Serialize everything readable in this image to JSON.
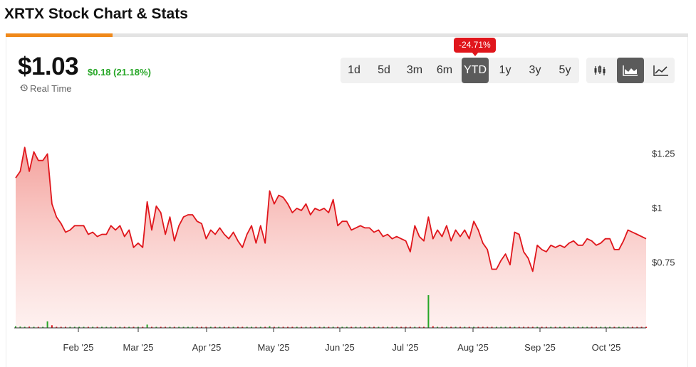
{
  "header": {
    "title": "XRTX Stock Chart & Stats"
  },
  "quote": {
    "price": "$1.03",
    "change": "$0.18 (21.18%)",
    "realtime_label": "Real Time"
  },
  "ranges": {
    "items": [
      "1d",
      "5d",
      "3m",
      "6m",
      "YTD",
      "1y",
      "3y",
      "5y"
    ],
    "selected": "YTD",
    "selected_change": "-24.71%"
  },
  "chart_types": [
    {
      "icon": "candlestick-icon",
      "selected": false
    },
    {
      "icon": "area-chart-icon",
      "selected": true
    },
    {
      "icon": "line-chart-icon",
      "selected": false
    }
  ],
  "colors": {
    "accent": "#f0891a",
    "line": "#e0161c",
    "up": "#26a626",
    "down": "#e0161c"
  },
  "chart_data": {
    "type": "area",
    "x_tick_labels": [
      "Feb '25",
      "Mar '25",
      "Apr '25",
      "May '25",
      "Jun '25",
      "Jul '25",
      "Aug '25",
      "Sep '25",
      "Oct '25"
    ],
    "y_tick_labels": [
      "$1.25",
      "$1",
      "$0.75"
    ],
    "y_ticks": [
      1.25,
      1.0,
      0.75
    ],
    "ylim": [
      0.45,
      1.5
    ],
    "series": [
      {
        "values": [
          1.14,
          1.17,
          1.28,
          1.17,
          1.26,
          1.22,
          1.22,
          1.25,
          1.02,
          0.96,
          0.93,
          0.89,
          0.9,
          0.92,
          0.92,
          0.92,
          0.88,
          0.89,
          0.87,
          0.88,
          0.88,
          0.92,
          0.9,
          0.92,
          0.87,
          0.9,
          0.82,
          0.84,
          0.82,
          1.03,
          0.9,
          1.01,
          0.98,
          0.88,
          0.96,
          0.85,
          0.92,
          0.96,
          0.97,
          0.97,
          0.94,
          0.93,
          0.86,
          0.9,
          0.88,
          0.91,
          0.88,
          0.86,
          0.89,
          0.85,
          0.82,
          0.88,
          0.92,
          0.84,
          0.92,
          0.84,
          1.08,
          1.02,
          1.06,
          1.05,
          1.02,
          0.98,
          1.0,
          0.99,
          1.02,
          0.97,
          1.0,
          0.99,
          1.0,
          0.98,
          1.04,
          0.92,
          0.94,
          0.94,
          0.9,
          0.91,
          0.92,
          0.91,
          0.91,
          0.89,
          0.9,
          0.87,
          0.88,
          0.86,
          0.87,
          0.86,
          0.85,
          0.8,
          0.92,
          0.87,
          0.85,
          0.96,
          0.86,
          0.9,
          0.87,
          0.92,
          0.85,
          0.9,
          0.87,
          0.9,
          0.86,
          0.94,
          0.9,
          0.84,
          0.81,
          0.72,
          0.72,
          0.76,
          0.79,
          0.74,
          0.89,
          0.88,
          0.8,
          0.77,
          0.71,
          0.83,
          0.81,
          0.8,
          0.83,
          0.82,
          0.83,
          0.82,
          0.84,
          0.85,
          0.83,
          0.83,
          0.86,
          0.85,
          0.83,
          0.84,
          0.86,
          0.86,
          0.81,
          0.81,
          0.85,
          0.9,
          0.89,
          0.88,
          0.87,
          0.86
        ]
      }
    ],
    "volume_values": [
      0.05,
      0.04,
      0.03,
      0.04,
      0.03,
      0.03,
      0.03,
      0.2,
      0.08,
      0.02,
      0.02,
      0.02,
      0.01,
      0.01,
      0.01,
      0.01,
      0.01,
      0.01,
      0.01,
      0.01,
      0.01,
      0.02,
      0.01,
      0.02,
      0.01,
      0.01,
      0.01,
      0.01,
      0.01,
      0.1,
      0.02,
      0.01,
      0.01,
      0.01,
      0.01,
      0.01,
      0.01,
      0.01,
      0.01,
      0.01,
      0.01,
      0.01,
      0.01,
      0.01,
      0.01,
      0.01,
      0.01,
      0.01,
      0.01,
      0.01,
      0.01,
      0.01,
      0.01,
      0.01,
      0.01,
      0.01,
      0.05,
      0.02,
      0.01,
      0.01,
      0.01,
      0.01,
      0.02,
      0.01,
      0.01,
      0.01,
      0.01,
      0.01,
      0.01,
      0.01,
      0.02,
      0.01,
      0.01,
      0.01,
      0.01,
      0.01,
      0.01,
      0.01,
      0.01,
      0.01,
      0.01,
      0.01,
      0.01,
      0.01,
      0.01,
      0.01,
      0.01,
      0.01,
      0.01,
      0.01,
      0.01,
      1.0,
      0.05,
      0.02,
      0.01,
      0.01,
      0.01,
      0.01,
      0.01,
      0.01,
      0.01,
      0.01,
      0.01,
      0.01,
      0.01,
      0.01,
      0.01,
      0.01,
      0.01,
      0.01,
      0.03,
      0.01,
      0.01,
      0.01,
      0.01,
      0.02,
      0.01,
      0.01,
      0.01,
      0.01,
      0.01,
      0.01,
      0.01,
      0.01,
      0.01,
      0.01,
      0.01,
      0.01,
      0.01,
      0.01,
      0.01,
      0.01,
      0.01,
      0.01,
      0.01,
      0.01,
      0.01,
      0.01,
      0.01,
      0.01
    ]
  }
}
